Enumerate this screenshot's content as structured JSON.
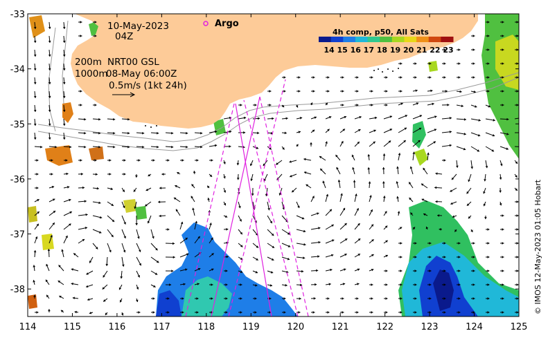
{
  "map": {
    "lon_range": [
      114,
      125
    ],
    "lat_range": [
      -38.5,
      -33
    ],
    "lon_ticks": [
      "114",
      "115",
      "116",
      "117",
      "118",
      "119",
      "120",
      "121",
      "122",
      "123",
      "124",
      "125"
    ],
    "lat_ticks": [
      "-33",
      "-34",
      "-35",
      "-36",
      "-37",
      "-38"
    ],
    "land_color": "#fdcb98",
    "ocean_color": "#ffffff"
  },
  "info": {
    "date": "10-May-2023",
    "hour": "04Z",
    "line1": "200m",
    "line1b": "NRT00 GSL",
    "line2": "1000m",
    "line2b": "08-May 06:00Z",
    "scale": "0.5m/s (1kt 24h)"
  },
  "argo": {
    "label": "Argo",
    "color": "#e020e0"
  },
  "colorbar": {
    "title": "4h comp, p50, All Sats",
    "ticks": [
      "14",
      "15",
      "16",
      "17",
      "18",
      "19",
      "20",
      "21",
      "22",
      "23"
    ],
    "colors": [
      "#0a1a8c",
      "#1040d0",
      "#1e7ee8",
      "#20b8d8",
      "#30c890",
      "#50c040",
      "#a8d820",
      "#e8d818",
      "#f09018",
      "#d04810",
      "#a01010"
    ]
  },
  "credit": "© IMOS 12-May-2023 01:05 Hobart"
}
